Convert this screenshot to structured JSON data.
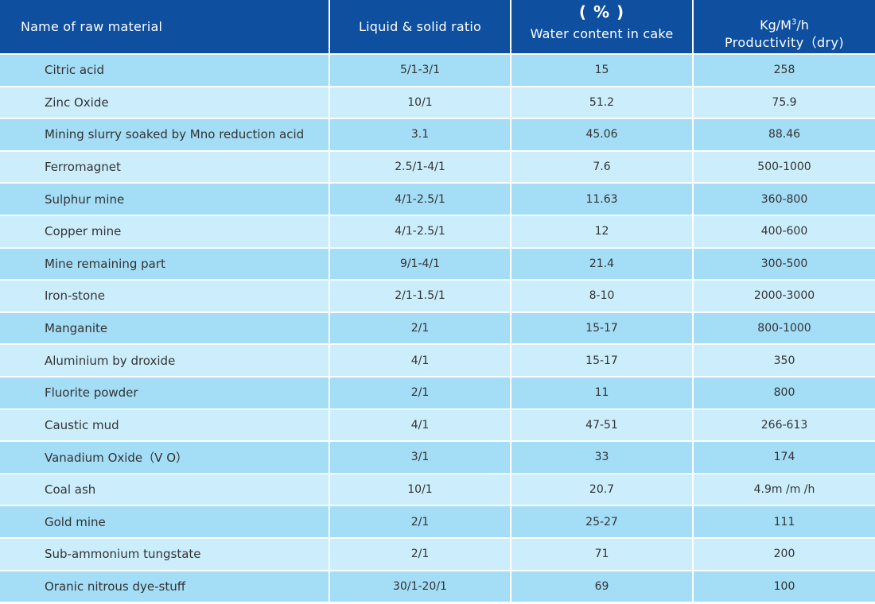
{
  "table": {
    "headers": {
      "name": "Name of raw material",
      "ratio": "Liquid & solid ratio",
      "water_unit": "( % )",
      "water": "Water content in cake",
      "prod_unit_prefix": "Kg/M",
      "prod_unit_sup": "3",
      "prod_unit_suffix": "/h",
      "prod": "Productivity（dry)"
    },
    "rows": [
      {
        "name": "Citric acid",
        "ratio": "5/1-3/1",
        "water": "15",
        "prod": "258"
      },
      {
        "name": "Zinc Oxide",
        "ratio": "10/1",
        "water": "51.2",
        "prod": "75.9"
      },
      {
        "name": "Mining slurry soaked by Mno reduction acid",
        "ratio": "3.1",
        "water": "45.06",
        "prod": "88.46"
      },
      {
        "name": "Ferromagnet",
        "ratio": "2.5/1-4/1",
        "water": "7.6",
        "prod": "500-1000"
      },
      {
        "name": "Sulphur mine",
        "ratio": "4/1-2.5/1",
        "water": "11.63",
        "prod": "360-800"
      },
      {
        "name": "Copper mine",
        "ratio": "4/1-2.5/1",
        "water": "12",
        "prod": "400-600"
      },
      {
        "name": "Mine remaining part",
        "ratio": "9/1-4/1",
        "water": "21.4",
        "prod": "300-500"
      },
      {
        "name": "Iron-stone",
        "ratio": "2/1-1.5/1",
        "water": "8-10",
        "prod": "2000-3000"
      },
      {
        "name": "Manganite",
        "ratio": "2/1",
        "water": "15-17",
        "prod": "800-1000"
      },
      {
        "name": "Aluminium by droxide",
        "ratio": "4/1",
        "water": "15-17",
        "prod": "350"
      },
      {
        "name": "Fluorite powder",
        "ratio": "2/1",
        "water": "11",
        "prod": "800"
      },
      {
        "name": "Caustic mud",
        "ratio": "4/1",
        "water": "47-51",
        "prod": "266-613"
      },
      {
        "name": "Vanadium Oxide（V O）",
        "ratio": "3/1",
        "water": "33",
        "prod": "174"
      },
      {
        "name": "Coal ash",
        "ratio": "10/1",
        "water": "20.7",
        "prod": "4.9m /m /h"
      },
      {
        "name": "Gold mine",
        "ratio": "2/1",
        "water": "25-27",
        "prod": "111"
      },
      {
        "name": "Sub-ammonium tungstate",
        "ratio": "2/1",
        "water": "71",
        "prod": "200"
      },
      {
        "name": "Oranic nitrous dye-stuff",
        "ratio": "30/1-20/1",
        "water": "69",
        "prod": "100"
      }
    ]
  }
}
